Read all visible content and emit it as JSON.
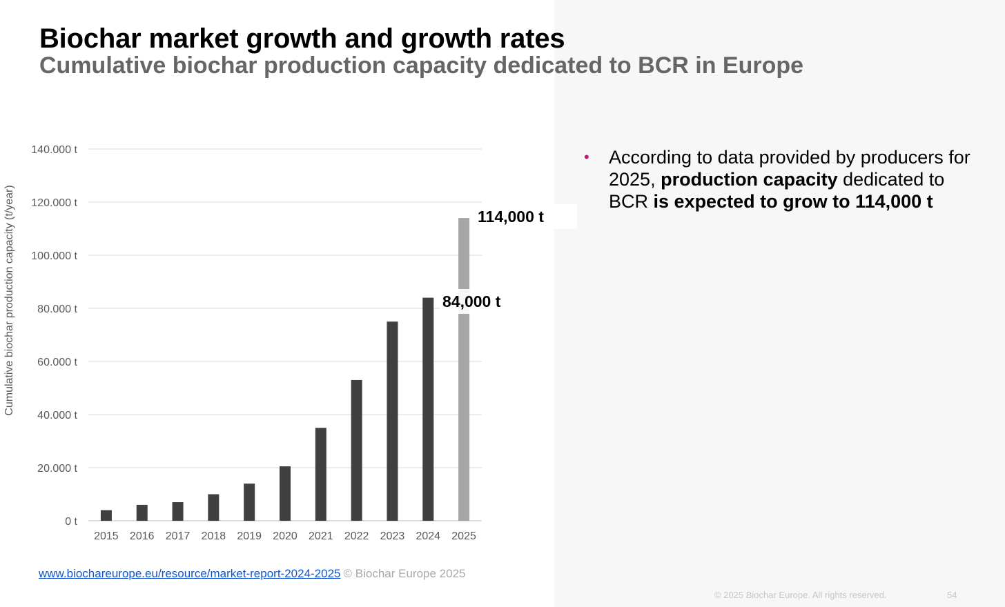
{
  "slide": {
    "title": "Biochar market growth and growth rates",
    "subtitle": "Cumulative biochar production capacity dedicated to BCR in Europe",
    "bullet": {
      "part1": "According to data provided by producers for 2025, ",
      "part2_bold": "production capacity",
      "part3": " dedicated to BCR ",
      "part4_bold": "is expected to grow to 114,000 t"
    },
    "source_link": "www.biochareurope.eu/resource/market-report-2024-2025",
    "source_copyright": "© Biochar Europe 2025",
    "footer_rights": "© 2025 Biochar Europe. All rights reserved.",
    "page_number": "54",
    "label_2025": "114,000 t",
    "label_2024": "84,000 t"
  },
  "colors": {
    "bar_dark": "#404040",
    "bar_light": "#a6a6a6",
    "bullet": "#c2187a",
    "link": "#1155cc"
  },
  "chart_data": {
    "type": "bar",
    "title": "",
    "ylabel": "Cumulative biochar production capacity (t/year)",
    "xlabel": "",
    "categories": [
      "2015",
      "2016",
      "2017",
      "2018",
      "2019",
      "2020",
      "2021",
      "2022",
      "2023",
      "2024",
      "2025"
    ],
    "values": [
      4000,
      6000,
      7000,
      10000,
      14000,
      20500,
      35000,
      53000,
      75000,
      84000,
      114000
    ],
    "highlight_category": "2025",
    "ylim": [
      0,
      140000
    ],
    "yticks": [
      0,
      20000,
      40000,
      60000,
      80000,
      100000,
      120000,
      140000
    ],
    "ytick_labels": [
      "0 t",
      "20.000 t",
      "40.000 t",
      "60.000 t",
      "80.000 t",
      "100.000 t",
      "120.000 t",
      "140.000 t"
    ],
    "grid": true,
    "legend": "none"
  }
}
